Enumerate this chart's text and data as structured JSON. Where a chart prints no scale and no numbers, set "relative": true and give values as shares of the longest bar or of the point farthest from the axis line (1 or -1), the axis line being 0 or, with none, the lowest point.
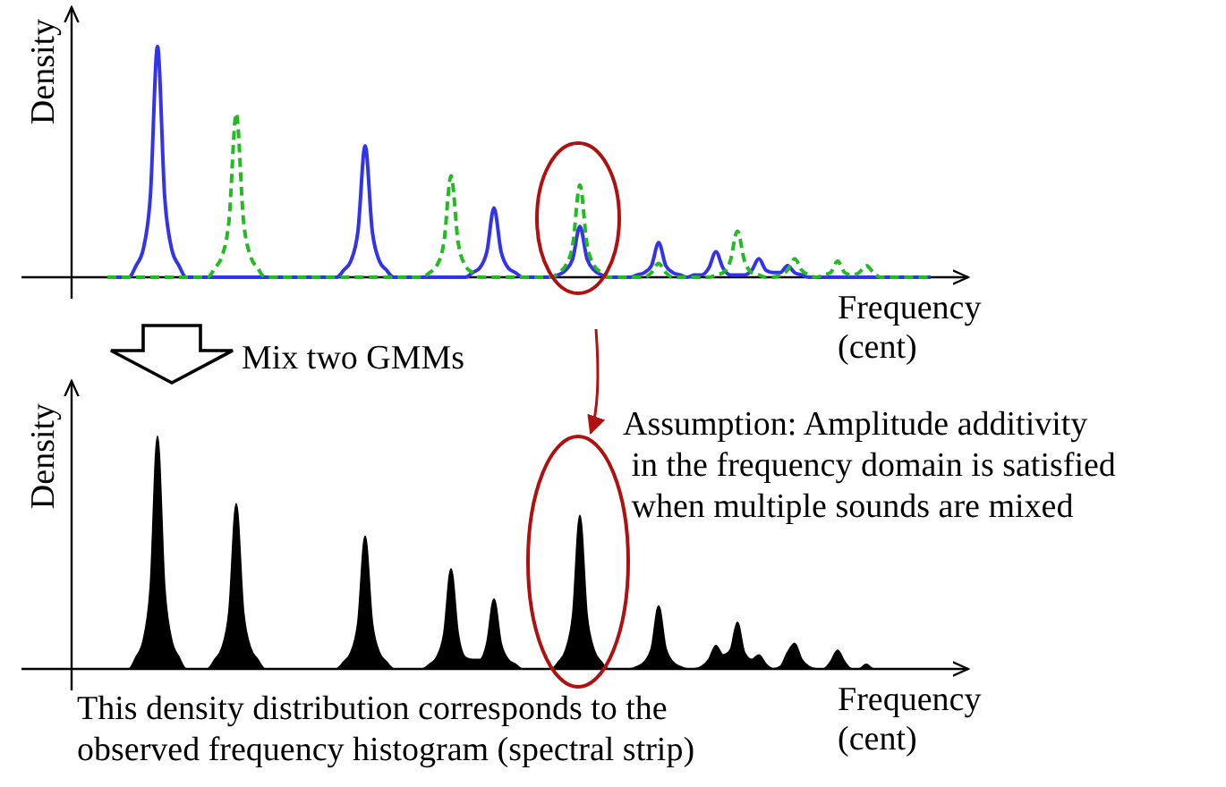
{
  "chart_data": [
    {
      "type": "line",
      "relative": true,
      "xlabel": "Frequency\n(cent)",
      "ylabel": "Density",
      "annotations": [
        "Mix two GMMs"
      ],
      "categories": [
        null,
        null,
        null,
        null,
        null,
        null,
        null,
        null,
        null,
        null,
        null,
        null,
        null,
        null,
        null,
        null,
        null,
        null,
        null,
        null,
        null,
        null,
        null,
        null,
        null,
        null,
        null,
        null,
        null,
        null,
        null,
        null,
        null,
        null,
        null,
        null,
        null,
        null,
        null,
        null,
        null,
        null,
        null,
        null,
        null,
        null,
        null,
        null,
        null,
        null,
        null,
        null,
        null,
        null,
        null,
        null,
        null,
        null,
        null,
        null,
        null,
        null,
        null,
        null,
        null,
        null,
        null,
        null,
        null,
        null,
        null,
        null,
        null,
        null,
        null,
        null,
        null,
        null,
        null,
        null,
        null,
        null,
        null,
        null,
        null,
        null,
        null,
        null,
        null,
        null,
        null,
        null,
        null,
        null,
        null,
        null,
        null,
        null,
        null,
        null,
        null,
        null,
        null,
        null,
        null,
        null,
        null,
        null,
        null,
        null,
        null,
        null,
        null,
        null,
        null,
        null
      ],
      "series": [
        {
          "color": "#3333ee",
          "line_style": "solid",
          "values": [
            0,
            0,
            0,
            0,
            0.05,
            0.12,
            0.35,
            1,
            0.35,
            0.12,
            0.05,
            0,
            0,
            0,
            0,
            0,
            0,
            0,
            0,
            0,
            0,
            0,
            0,
            0,
            0,
            0,
            0,
            0,
            0,
            0,
            0,
            0,
            0,
            0.03,
            0.07,
            0.2,
            0.57,
            0.2,
            0.07,
            0.03,
            0,
            0,
            0,
            0,
            0,
            0,
            0,
            0,
            0,
            0,
            0,
            0.02,
            0.04,
            0.11,
            0.3,
            0.11,
            0.04,
            0.02,
            0,
            0,
            0,
            0,
            0,
            0.01,
            0.03,
            0.08,
            0.22,
            0.08,
            0.03,
            0.01,
            0,
            0,
            0,
            0,
            0.01,
            0.02,
            0.05,
            0.15,
            0.05,
            0.02,
            0.01,
            0,
            0.01,
            0.01,
            0.04,
            0.11,
            0.04,
            0.01,
            0.01,
            0.01,
            0.03,
            0.08,
            0.03,
            0.02,
            0.02,
            0.05,
            0.02,
            0.01,
            0,
            0,
            0,
            0,
            0,
            0,
            0,
            0,
            0,
            0,
            0,
            0,
            0,
            0,
            0,
            0,
            0,
            0
          ]
        },
        {
          "color": "#22bb22",
          "line_style": "dashed",
          "values": [
            0,
            0,
            0,
            0,
            0,
            0,
            0,
            0,
            0,
            0,
            0,
            0,
            0,
            0,
            0,
            0.04,
            0.09,
            0.25,
            0.71,
            0.25,
            0.09,
            0.04,
            0,
            0,
            0,
            0,
            0,
            0,
            0,
            0,
            0,
            0,
            0,
            0,
            0,
            0,
            0,
            0,
            0,
            0,
            0,
            0,
            0,
            0,
            0,
            0.02,
            0.05,
            0.15,
            0.44,
            0.15,
            0.05,
            0.02,
            0,
            0,
            0,
            0,
            0,
            0,
            0,
            0,
            0,
            0,
            0,
            0.02,
            0.05,
            0.14,
            0.4,
            0.14,
            0.05,
            0.02,
            0,
            0,
            0,
            0,
            0,
            0,
            0.02,
            0.06,
            0.02,
            0,
            0,
            0,
            0,
            0,
            0,
            0.01,
            0.02,
            0.07,
            0.2,
            0.07,
            0.02,
            0.01,
            0,
            0,
            0.01,
            0.03,
            0.08,
            0.03,
            0.01,
            0,
            0.01,
            0.02,
            0.07,
            0.02,
            0.01,
            0.02,
            0.05,
            0.02,
            0,
            0,
            0,
            0,
            0,
            0,
            0,
            0
          ]
        }
      ]
    },
    {
      "type": "area",
      "relative": true,
      "xlabel": "Frequency\n(cent)",
      "ylabel": "Density",
      "annotations": [
        "Assumption: Amplitude additivity\n in the frequency domain is satisfied\n when multiple sounds are mixed",
        "This density distribution corresponds to the\nobserved frequency histogram (spectral strip)"
      ],
      "categories": [
        null,
        null,
        null,
        null,
        null,
        null,
        null,
        null,
        null,
        null,
        null,
        null,
        null,
        null,
        null,
        null,
        null,
        null,
        null,
        null,
        null,
        null,
        null,
        null,
        null,
        null,
        null,
        null,
        null,
        null,
        null,
        null,
        null,
        null,
        null,
        null,
        null,
        null,
        null,
        null,
        null,
        null,
        null,
        null,
        null,
        null,
        null,
        null,
        null,
        null,
        null,
        null,
        null,
        null,
        null,
        null,
        null,
        null,
        null,
        null,
        null,
        null,
        null,
        null,
        null,
        null,
        null,
        null,
        null,
        null,
        null,
        null,
        null,
        null,
        null,
        null,
        null,
        null,
        null,
        null,
        null,
        null,
        null,
        null,
        null,
        null,
        null,
        null,
        null,
        null,
        null,
        null,
        null,
        null,
        null,
        null,
        null,
        null,
        null,
        null,
        null,
        null,
        null,
        null,
        null,
        null,
        null,
        null,
        null,
        null,
        null,
        null,
        null,
        null,
        null,
        null
      ],
      "series": [
        {
          "color": "#000000",
          "values": [
            0,
            0,
            0,
            0,
            0.05,
            0.12,
            0.35,
            1,
            0.35,
            0.12,
            0.05,
            0,
            0,
            0,
            0,
            0.04,
            0.09,
            0.25,
            0.71,
            0.25,
            0.09,
            0.04,
            0,
            0,
            0,
            0,
            0,
            0,
            0,
            0,
            0,
            0,
            0,
            0.03,
            0.07,
            0.2,
            0.57,
            0.2,
            0.07,
            0.03,
            0,
            0,
            0,
            0,
            0,
            0.02,
            0.05,
            0.15,
            0.43,
            0.15,
            0.05,
            0.04,
            0.04,
            0.11,
            0.3,
            0.11,
            0.04,
            0.02,
            0,
            0,
            0,
            0,
            0,
            0.03,
            0.08,
            0.23,
            0.66,
            0.23,
            0.08,
            0.03,
            0,
            0,
            0,
            0,
            0.01,
            0.03,
            0.09,
            0.27,
            0.09,
            0.03,
            0.01,
            0,
            0,
            0.01,
            0.04,
            0.1,
            0.06,
            0.08,
            0.2,
            0.07,
            0.04,
            0.06,
            0.02,
            0,
            0.01,
            0.07,
            0.11,
            0.04,
            0.01,
            0,
            0,
            0.03,
            0.08,
            0.03,
            0,
            0,
            0.02,
            0,
            0,
            0,
            0,
            0,
            0,
            0,
            0,
            0
          ]
        }
      ]
    }
  ]
}
